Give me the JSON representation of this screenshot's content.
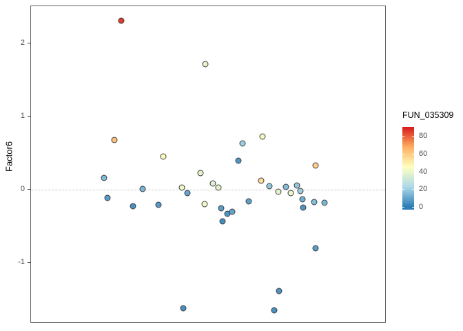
{
  "figure": {
    "y_axis_label": "Factor6",
    "y_ticks": [
      2,
      1,
      0,
      -1
    ],
    "legend": {
      "title": "FUN_035309",
      "ticks": [
        80,
        60,
        40,
        20,
        0
      ]
    }
  },
  "chart_data": {
    "type": "scatter",
    "title": "",
    "xlabel": "",
    "ylabel": "Factor6",
    "ylim": [
      -1.81,
      2.51
    ],
    "grid": "off",
    "zero_line": {
      "y": 0,
      "style": "dashed",
      "color": "#c9c9c9"
    },
    "legend_position": "right",
    "color_scale": {
      "title": "FUN_035309",
      "ticks": [
        0,
        20,
        40,
        60,
        80
      ],
      "bar_domain": [
        -3,
        90
      ],
      "stops": [
        {
          "v": 0,
          "c": "#2c7bb6"
        },
        {
          "v": 22.5,
          "c": "#abd9e9"
        },
        {
          "v": 45,
          "c": "#ffffbf"
        },
        {
          "v": 67.5,
          "c": "#fdae61"
        },
        {
          "v": 90,
          "c": "#d7191c"
        }
      ]
    },
    "points": [
      {
        "x": 0.254,
        "y": 2.31,
        "c": 85
      },
      {
        "x": 0.236,
        "y": 0.68,
        "c": 62
      },
      {
        "x": 0.207,
        "y": 0.16,
        "c": 15
      },
      {
        "x": 0.215,
        "y": -0.11,
        "c": 8
      },
      {
        "x": 0.287,
        "y": -0.23,
        "c": 5
      },
      {
        "x": 0.316,
        "y": 0.01,
        "c": 14
      },
      {
        "x": 0.36,
        "y": -0.21,
        "c": 7
      },
      {
        "x": 0.374,
        "y": 0.45,
        "c": 45
      },
      {
        "x": 0.492,
        "y": 1.72,
        "c": 38
      },
      {
        "x": 0.426,
        "y": 0.03,
        "c": 40
      },
      {
        "x": 0.442,
        "y": -0.05,
        "c": 10
      },
      {
        "x": 0.479,
        "y": 0.23,
        "c": 38
      },
      {
        "x": 0.49,
        "y": -0.2,
        "c": 42
      },
      {
        "x": 0.514,
        "y": 0.09,
        "c": 36
      },
      {
        "x": 0.529,
        "y": 0.03,
        "c": 38
      },
      {
        "x": 0.537,
        "y": -0.25,
        "c": 8
      },
      {
        "x": 0.554,
        "y": -0.33,
        "c": 6
      },
      {
        "x": 0.568,
        "y": -0.3,
        "c": 10
      },
      {
        "x": 0.541,
        "y": -0.43,
        "c": 4
      },
      {
        "x": 0.597,
        "y": 0.63,
        "c": 20
      },
      {
        "x": 0.585,
        "y": 0.4,
        "c": 6
      },
      {
        "x": 0.614,
        "y": -0.16,
        "c": 9
      },
      {
        "x": 0.653,
        "y": 0.73,
        "c": 42
      },
      {
        "x": 0.649,
        "y": 0.12,
        "c": 55
      },
      {
        "x": 0.674,
        "y": 0.05,
        "c": 18
      },
      {
        "x": 0.698,
        "y": -0.03,
        "c": 38
      },
      {
        "x": 0.719,
        "y": 0.04,
        "c": 16
      },
      {
        "x": 0.734,
        "y": -0.05,
        "c": 40
      },
      {
        "x": 0.75,
        "y": 0.06,
        "c": 18
      },
      {
        "x": 0.76,
        "y": -0.02,
        "c": 20
      },
      {
        "x": 0.767,
        "y": -0.13,
        "c": 12
      },
      {
        "x": 0.769,
        "y": -0.24,
        "c": 6
      },
      {
        "x": 0.804,
        "y": 0.33,
        "c": 58
      },
      {
        "x": 0.8,
        "y": -0.17,
        "c": 16
      },
      {
        "x": 0.828,
        "y": -0.18,
        "c": 14
      },
      {
        "x": 0.804,
        "y": -0.8,
        "c": 8
      },
      {
        "x": 0.7,
        "y": -1.39,
        "c": 6
      },
      {
        "x": 0.686,
        "y": -1.65,
        "c": 5
      },
      {
        "x": 0.43,
        "y": -1.62,
        "c": 5
      }
    ]
  }
}
